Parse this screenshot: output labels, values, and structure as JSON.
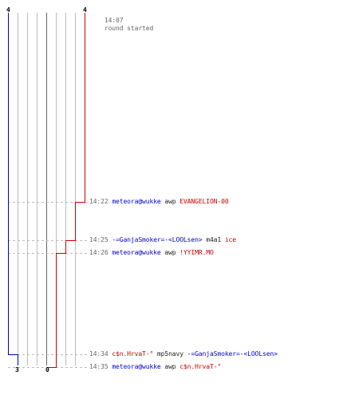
{
  "round_header": {
    "time": "14:07",
    "text": "round started"
  },
  "counts": {
    "blue_start": "4",
    "red_start": "4",
    "blue_end": "3",
    "red_end": "0"
  },
  "colors": {
    "blue": "#0000cc",
    "red": "#cc0000",
    "gray_text": "#666666",
    "grid": "#bbbbbb",
    "dash": "#bbbbbb",
    "dark_divider": "#666666"
  },
  "events": [
    {
      "time": "14:22",
      "parts": [
        {
          "text": "meteora@wukke",
          "color": "blue"
        },
        {
          "text": " awp ",
          "color": "plain"
        },
        {
          "text": "EVANGELION-00",
          "color": "red"
        }
      ]
    },
    {
      "time": "14:25",
      "parts": [
        {
          "text": "-=GanjaSmoker=-<LOOLsen>",
          "color": "blue"
        },
        {
          "text": " m4a1 ",
          "color": "plain"
        },
        {
          "text": "ice",
          "color": "red"
        }
      ]
    },
    {
      "time": "14:26",
      "parts": [
        {
          "text": "meteora@wukke",
          "color": "blue"
        },
        {
          "text": " awp ",
          "color": "plain"
        },
        {
          "text": "!YYIMR.MO",
          "color": "red"
        }
      ]
    },
    {
      "time": "14:34",
      "parts": [
        {
          "text": "c$n.HrvaT-°",
          "color": "red"
        },
        {
          "text": " mp5navy ",
          "color": "plain"
        },
        {
          "text": "-=GanjaSmoker=-<LOOLsen>",
          "color": "blue"
        }
      ]
    },
    {
      "time": "14:35",
      "parts": [
        {
          "text": "meteora@wukke",
          "color": "blue"
        },
        {
          "text": " awp ",
          "color": "plain"
        },
        {
          "text": "c$n.HrvaT-°",
          "color": "red"
        }
      ]
    }
  ]
}
